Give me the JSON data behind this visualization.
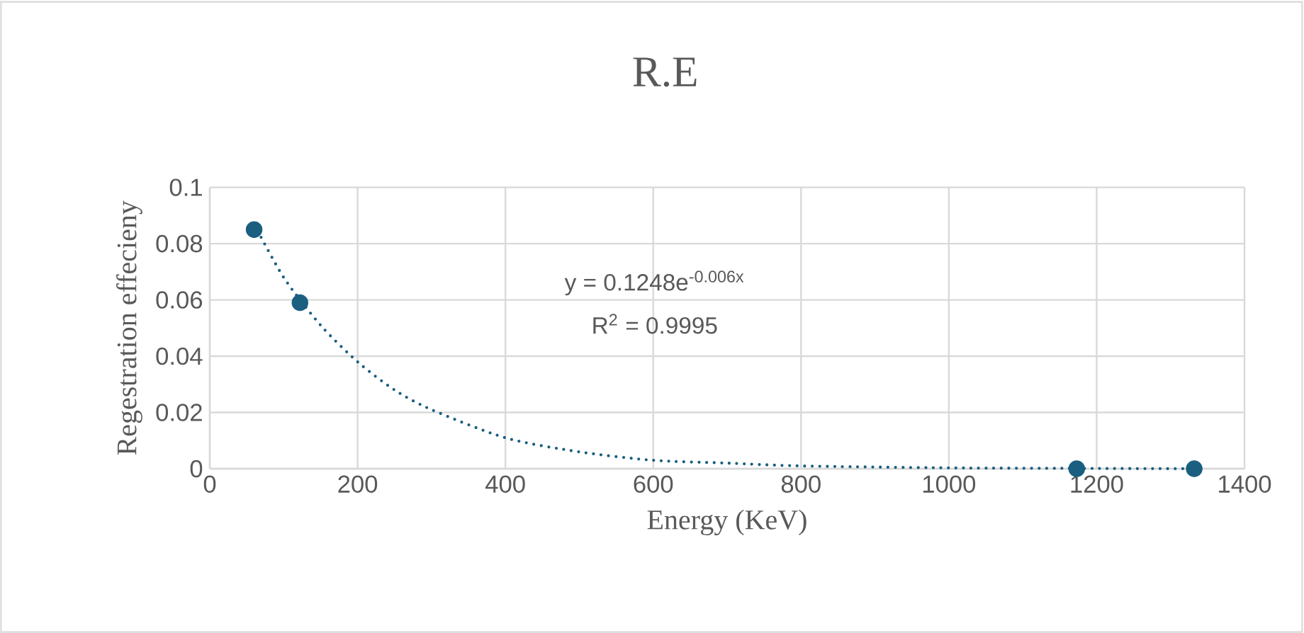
{
  "chart_data": {
    "type": "scatter",
    "title": "R.E",
    "xlabel": "Energy (KeV)",
    "ylabel": "Regestration effecieny",
    "xlim": [
      0,
      1400
    ],
    "xticks": [
      0,
      200,
      400,
      600,
      800,
      1000,
      1200,
      1400
    ],
    "ylim": [
      0,
      0.1
    ],
    "yticks": [
      0,
      0.02,
      0.04,
      0.06,
      0.08,
      0.1
    ],
    "grid": true,
    "series": [
      {
        "type": "scatter",
        "marker": "circle",
        "color": "#1a5e80",
        "x": [
          60,
          122,
          1173,
          1332
        ],
        "values": [
          0.085,
          0.059,
          0,
          0
        ]
      },
      {
        "type": "line",
        "color": "#1a5e80",
        "marker": "none",
        "line_style": "dotted",
        "x": [
          60,
          100,
          150,
          200,
          250,
          300,
          400,
          500,
          600,
          700,
          800,
          1000,
          1200,
          1332
        ],
        "values": [
          0.087,
          0.068,
          0.051,
          0.038,
          0.028,
          0.021,
          0.011,
          0.006,
          0.003,
          0.002,
          0.001,
          0.0003,
          0.0001,
          0
        ]
      }
    ],
    "annotations": [
      "y = 0.1248e$^{-0.006x}$",
      "R$^{2}$ = 0.9995"
    ]
  }
}
